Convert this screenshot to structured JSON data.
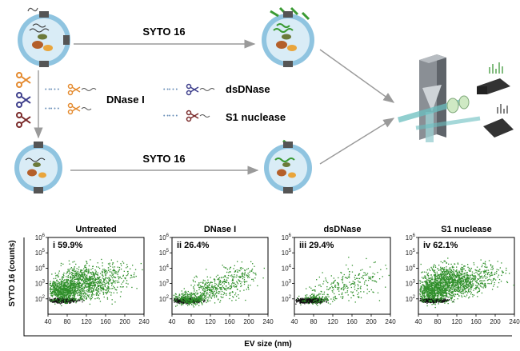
{
  "top": {
    "stain_top": "SYTO 16",
    "stain_bottom": "SYTO 16",
    "enzymes": {
      "dnase": "DNase I",
      "dsdnase": "dsDNase",
      "s1": "S1 nuclease"
    }
  },
  "axes": {
    "ylabel": "SYTO 16 (counts)",
    "xlabel": "EV size (nm)",
    "xticks": [
      "40",
      "80",
      "120",
      "160",
      "200",
      "240"
    ],
    "yticks": [
      {
        "base": "10",
        "exp": "2"
      },
      {
        "base": "10",
        "exp": "3"
      },
      {
        "base": "10",
        "exp": "4"
      },
      {
        "base": "10",
        "exp": "5"
      },
      {
        "base": "10",
        "exp": "6"
      }
    ]
  },
  "chart_data": [
    {
      "type": "scatter",
      "title": "Untreated",
      "panel": "i",
      "percent": "59.9%",
      "x_range": [
        40,
        240
      ],
      "y_log_range": [
        1,
        6
      ],
      "series": [
        {
          "color": "#2f8f2a"
        },
        {
          "color": "#111111"
        }
      ]
    },
    {
      "type": "scatter",
      "title": "DNase I",
      "panel": "ii",
      "percent": "26.4%",
      "x_range": [
        40,
        240
      ],
      "y_log_range": [
        1,
        6
      ],
      "series": [
        {
          "color": "#2f8f2a"
        },
        {
          "color": "#111111"
        }
      ]
    },
    {
      "type": "scatter",
      "title": "dsDNase",
      "panel": "iii",
      "percent": "29.4%",
      "x_range": [
        40,
        240
      ],
      "y_log_range": [
        1,
        6
      ],
      "series": [
        {
          "color": "#2f8f2a"
        },
        {
          "color": "#111111"
        }
      ]
    },
    {
      "type": "scatter",
      "title": "S1 nuclease",
      "panel": "iv",
      "percent": "62.1%",
      "x_range": [
        40,
        240
      ],
      "y_log_range": [
        1,
        6
      ],
      "series": [
        {
          "color": "#2f8f2a"
        },
        {
          "color": "#111111"
        }
      ]
    }
  ],
  "colors": {
    "membrane_outer": "#8fc4e0",
    "membrane_inner": "#d9ecf6",
    "dna_green": "#3a9a33",
    "arrow_gray": "#9a9a9a",
    "scissor_orange": "#e48a2e",
    "scissor_blue": "#3e3f8c",
    "scissor_maroon": "#7a2a2a"
  }
}
